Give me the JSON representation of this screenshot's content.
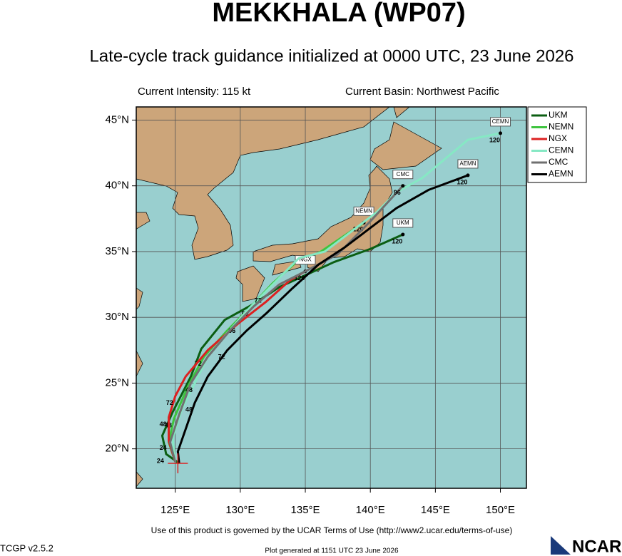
{
  "header": {
    "title": "MEKKHALA (WP07)",
    "subtitle": "Late-cycle track guidance initialized at 0000 UTC, 23 June 2026",
    "intensity": "Current Intensity: 115 kt",
    "basin": "Current Basin: Northwest Pacific"
  },
  "map": {
    "xlim": [
      122,
      152
    ],
    "ylim": [
      17,
      46
    ],
    "xticks": [
      {
        "value": 125,
        "label": "125°E"
      },
      {
        "value": 130,
        "label": "130°E"
      },
      {
        "value": 135,
        "label": "135°E"
      },
      {
        "value": 140,
        "label": "140°E"
      },
      {
        "value": 145,
        "label": "145°E"
      },
      {
        "value": 150,
        "label": "150°E"
      }
    ],
    "yticks": [
      {
        "value": 20,
        "label": "20°N"
      },
      {
        "value": 25,
        "label": "25°N"
      },
      {
        "value": 30,
        "label": "30°N"
      },
      {
        "value": 35,
        "label": "35°N"
      },
      {
        "value": 40,
        "label": "40°N"
      },
      {
        "value": 45,
        "label": "45°N"
      }
    ],
    "storm": {
      "lon": 125.2,
      "lat": 18.9
    }
  },
  "tracks": [
    {
      "name": "UKM",
      "color": "#0b5e12",
      "lon": [
        125.3,
        124.3,
        124.0,
        124.8,
        126.2,
        127.0,
        128.8,
        131.0,
        133.0,
        135.0,
        137.2,
        140.0,
        142.5
      ],
      "lat": [
        18.9,
        19.6,
        21.0,
        22.8,
        25.5,
        27.6,
        29.8,
        31.0,
        32.3,
        33.2,
        34.2,
        35.2,
        36.3
      ],
      "labels": [
        null,
        "24",
        null,
        null,
        null,
        null,
        null,
        null,
        null,
        null,
        null,
        null,
        "120"
      ]
    },
    {
      "name": "NEMN",
      "color": "#3fc43f",
      "lon": [
        125.0,
        124.5,
        124.9,
        126.0,
        127.2,
        129.0,
        130.8,
        132.5,
        134.2,
        136.2,
        138.0,
        139.5
      ],
      "lat": [
        19.0,
        20.5,
        22.3,
        24.8,
        27.0,
        29.0,
        30.8,
        32.6,
        34.1,
        35.0,
        36.2,
        37.2
      ],
      "labels": [
        null,
        null,
        "48",
        null,
        "72",
        null,
        "96",
        null,
        null,
        null,
        null,
        "120"
      ]
    },
    {
      "name": "NGX",
      "color": "#dd2020",
      "lon": [
        125.0,
        124.5,
        124.5,
        125.0,
        125.8,
        127.5,
        129.8,
        132.0,
        133.8,
        135.0
      ],
      "lat": [
        19.0,
        20.6,
        22.4,
        24.0,
        25.5,
        27.5,
        29.5,
        31.2,
        32.8,
        33.5
      ],
      "labels": [
        null,
        "24",
        "48",
        "72",
        null,
        null,
        "96",
        null,
        null,
        "120"
      ]
    },
    {
      "name": "CEMN",
      "color": "#86e8c4",
      "lon": [
        125.0,
        124.8,
        125.5,
        126.5,
        127.5,
        129.0,
        130.5,
        131.8,
        133.0,
        134.5,
        136.5,
        138.5,
        140.5,
        142.0,
        144.0,
        147.5,
        150.0
      ],
      "lat": [
        19.0,
        20.8,
        23.0,
        25.0,
        27.0,
        28.8,
        30.5,
        31.8,
        33.0,
        34.5,
        35.0,
        36.5,
        38.0,
        39.5,
        40.6,
        43.5,
        44.0
      ],
      "labels": [
        null,
        null,
        null,
        "48",
        null,
        null,
        null,
        "72",
        null,
        null,
        null,
        null,
        null,
        null,
        null,
        null,
        "120"
      ]
    },
    {
      "name": "CMC",
      "color": "#707070",
      "lon": [
        125.0,
        124.6,
        125.3,
        126.2,
        127.5,
        129.2,
        131.0,
        133.0,
        135.0,
        137.5,
        140.0,
        142.5
      ],
      "lat": [
        19.0,
        20.5,
        22.6,
        25.0,
        27.0,
        29.0,
        30.8,
        32.5,
        33.5,
        34.8,
        37.3,
        40.0
      ],
      "labels": [
        null,
        null,
        null,
        null,
        null,
        null,
        null,
        null,
        null,
        null,
        null,
        "96"
      ]
    },
    {
      "name": "AEMN",
      "color": "#000000",
      "lon": [
        125.3,
        125.2,
        125.8,
        126.5,
        127.5,
        129.0,
        130.5,
        132.0,
        134.0,
        136.0,
        138.0,
        140.0,
        142.0,
        144.5,
        147.5
      ],
      "lat": [
        18.9,
        19.8,
        21.5,
        23.5,
        25.5,
        27.5,
        29.0,
        30.3,
        32.2,
        34.0,
        35.3,
        36.8,
        38.3,
        39.7,
        40.8
      ],
      "labels": [
        null,
        null,
        null,
        "48",
        null,
        "72",
        null,
        null,
        null,
        null,
        null,
        null,
        null,
        null,
        "120"
      ]
    }
  ],
  "footer": {
    "terms": "Use of this product is governed by the UCAR Terms of Use (http://www2.ucar.edu/terms-of-use)",
    "version": "TCGP v2.5.2",
    "generated": "Plot generated at 1151 UTC   23 June 2026",
    "logo": "NCAR"
  }
}
